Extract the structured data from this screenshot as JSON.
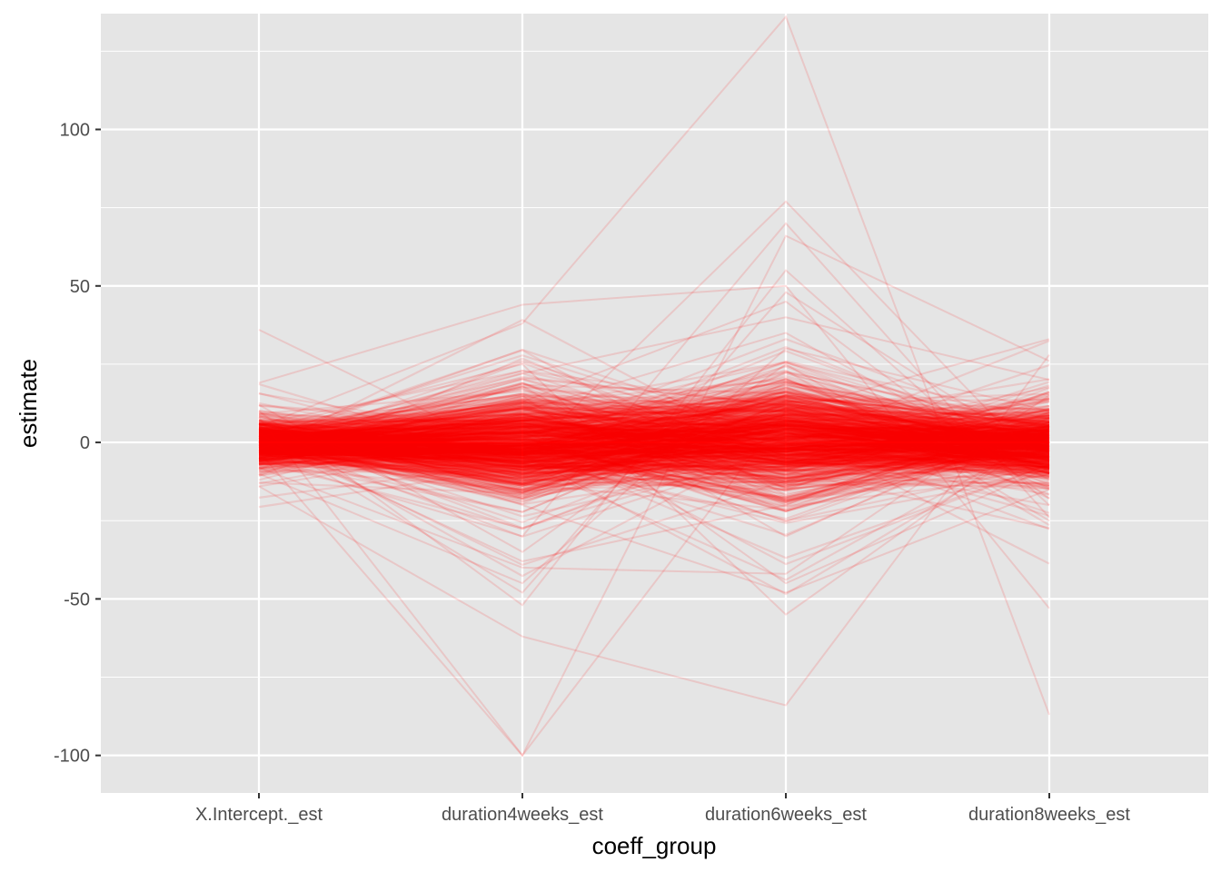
{
  "chart_data": {
    "type": "line",
    "subtype": "parallel-coordinates",
    "title": "",
    "xlabel": "coeff_group",
    "ylabel": "estimate",
    "categories": [
      "X.Intercept._est",
      "duration4weeks_est",
      "duration6weeks_est",
      "duration8weeks_est"
    ],
    "ylim": [
      -112,
      137
    ],
    "yticks": [
      -100,
      -50,
      0,
      50,
      100
    ],
    "ytick_labels": [
      "-100",
      "-50",
      "0",
      "50",
      "100"
    ],
    "grid": true,
    "legend": "none",
    "line_color": "#ff0000",
    "line_alpha": 0.12,
    "panel_background": "#e5e5e5",
    "grid_color": "#ffffff",
    "highlighted_series": [
      {
        "values": [
          5,
          38,
          136,
          -87
        ]
      },
      {
        "values": [
          36,
          -5,
          77,
          -10
        ]
      },
      {
        "values": [
          19,
          44,
          50,
          -53
        ]
      },
      {
        "values": [
          8,
          -100,
          66,
          26
        ]
      },
      {
        "values": [
          -3,
          -100,
          10,
          33
        ]
      },
      {
        "values": [
          -14,
          -62,
          -84,
          28
        ]
      },
      {
        "values": [
          10,
          -52,
          55,
          -20
        ]
      },
      {
        "values": [
          -8,
          -40,
          -42,
          15
        ]
      },
      {
        "values": [
          4,
          25,
          -55,
          5
        ]
      },
      {
        "values": [
          -5,
          -30,
          70,
          -24
        ]
      },
      {
        "values": [
          2,
          13,
          45,
          -18
        ]
      },
      {
        "values": [
          -10,
          -45,
          30,
          10
        ]
      },
      {
        "values": [
          7,
          -20,
          -48,
          -15
        ]
      },
      {
        "values": [
          -2,
          22,
          40,
          20
        ]
      },
      {
        "values": [
          12,
          -35,
          25,
          -25
        ]
      },
      {
        "values": [
          -6,
          18,
          -30,
          8
        ]
      },
      {
        "values": [
          3,
          -48,
          48,
          -5
        ]
      },
      {
        "values": [
          -12,
          10,
          35,
          -12
        ]
      },
      {
        "values": [
          1,
          -38,
          -20,
          14
        ]
      },
      {
        "values": [
          6,
          15,
          -45,
          -8
        ]
      }
    ],
    "bulk_series_count": 800,
    "bulk_series_sd": [
      3.5,
      8,
      9,
      5.5
    ],
    "bulk_series_mean": [
      0,
      -1,
      1,
      -0.5
    ]
  }
}
